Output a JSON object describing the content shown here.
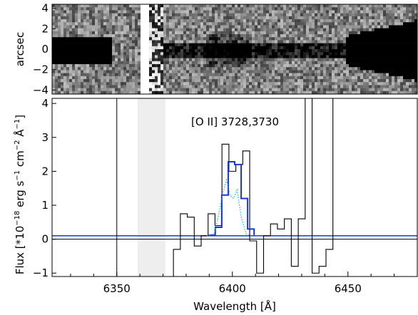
{
  "chart_data": [
    {
      "type": "heatmap",
      "panel": "2d-spectrum",
      "ylabel": "arcsec",
      "ylim": [
        -4.4,
        4.4
      ],
      "y_ticks": [
        -4,
        -2,
        0,
        2,
        4
      ],
      "y_tick_labels": [
        "−4",
        "−2",
        "0",
        "2",
        "4"
      ],
      "xlim": [
        6322,
        6480
      ],
      "colormap": "grayscale",
      "features": {
        "continuum_left_x": [
          6322,
          6347
        ],
        "continuum_right_x": [
          6448,
          6480
        ],
        "masked_band_x": [
          6360,
          6363
        ],
        "noisy_band_x": [
          6363,
          6369
        ],
        "emission_trace_x": [
          6369,
          6448
        ]
      }
    },
    {
      "type": "line",
      "panel": "1d-spectrum",
      "xlabel": "Wavelength [Å]",
      "ylabel": "Flux [*10",
      "ylabel_exp": "−18",
      "ylabel_rest": " erg s",
      "ylabel_exp2": "−1",
      "ylabel_rest2": " cm",
      "ylabel_exp3": "−2",
      "ylabel_rest3": " Å",
      "ylabel_exp4": "−1",
      "ylabel_close": "]",
      "xlim": [
        6322,
        6480
      ],
      "ylim": [
        -1.1,
        4.15
      ],
      "x_ticks": [
        6350,
        6400,
        6450
      ],
      "x_tick_labels": [
        "6350",
        "6400",
        "6450"
      ],
      "y_ticks": [
        -1,
        0,
        1,
        2,
        3,
        4
      ],
      "y_tick_labels": [
        "−1",
        "0",
        "1",
        "2",
        "3",
        "4"
      ],
      "annotation": "[O II] 3728,3730",
      "shaded_band": [
        6359,
        6371
      ],
      "series": [
        {
          "style": "black-steps",
          "x": [
            6350,
            6371.5,
            6374.5,
            6377.5,
            6380.5,
            6383.5,
            6386.5,
            6389.5,
            6392.5,
            6395.5,
            6398.5,
            6401.5,
            6404.5,
            6407.5,
            6410.5,
            6413.5,
            6416.5,
            6419.5,
            6422.5,
            6425.5,
            6428.5,
            6431.5,
            6434.5,
            6437.5,
            6440.5,
            6443.5
          ],
          "y": [
            4.5,
            -1.2,
            -0.3,
            0.75,
            0.65,
            -0.2,
            0.1,
            0.75,
            0.4,
            2.8,
            2.0,
            2.2,
            2.6,
            -0.05,
            -1.0,
            0.1,
            0.45,
            0.3,
            0.6,
            -0.8,
            0.6,
            4.5,
            -1.0,
            -0.8,
            -0.3,
            4.5
          ]
        },
        {
          "style": "blue-steps",
          "x": [
            6389.8,
            6392.6,
            6395.4,
            6398.2,
            6401.0,
            6403.8,
            6406.6,
            6409.4
          ],
          "y": [
            0.12,
            0.35,
            1.3,
            2.28,
            2.2,
            1.2,
            0.3,
            0.12
          ]
        },
        {
          "style": "cyan-dotted",
          "x": [
            6389,
            6392,
            6394,
            6396,
            6397.5,
            6399,
            6400.5,
            6402,
            6404,
            6406,
            6408
          ],
          "y": [
            0.1,
            0.15,
            0.7,
            1.4,
            1.75,
            1.3,
            1.2,
            1.45,
            0.6,
            0.15,
            0.1
          ]
        }
      ],
      "baseline_y": 0.1,
      "zero_line_y": 0
    }
  ]
}
